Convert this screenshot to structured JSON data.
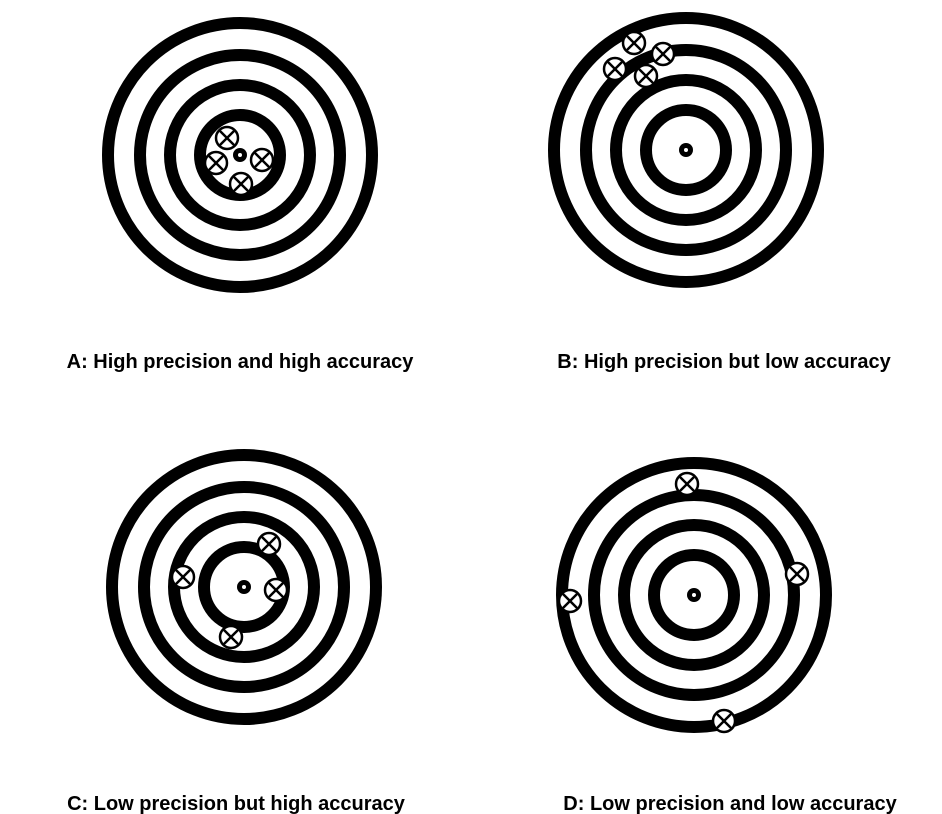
{
  "panels": [
    {
      "caption": "A: High precision and high accuracy"
    },
    {
      "caption": "B: High precision but low accuracy"
    },
    {
      "caption": "C: Low precision but high accuracy"
    },
    {
      "caption": "D: Low precision and low accuracy"
    }
  ]
}
